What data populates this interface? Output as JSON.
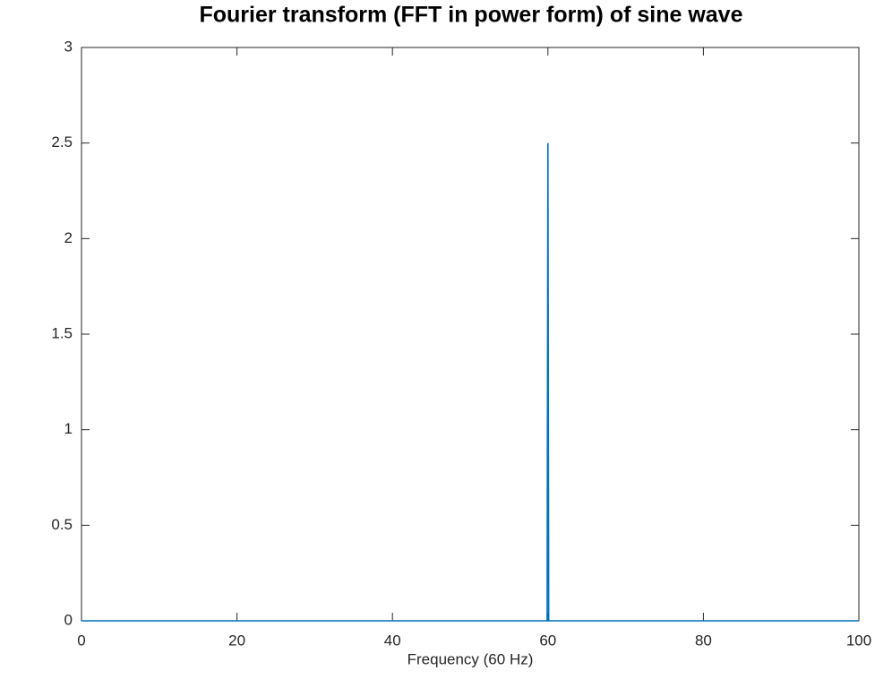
{
  "chart_data": {
    "type": "line",
    "title": "Fourier transform (FFT in power form) of sine wave",
    "x_label": "Frequency (60 Hz)",
    "x": [
      0,
      59.9,
      60,
      60.1,
      100
    ],
    "series": [
      {
        "color": "#0072bd",
        "values": [
          0,
          0,
          2.5,
          0,
          0
        ]
      }
    ],
    "xlim": [
      0,
      100
    ],
    "xticks": [
      0,
      20,
      40,
      60,
      80,
      100
    ],
    "ylim": [
      0,
      3
    ],
    "yticks": [
      0,
      0.5,
      1,
      1.5,
      2,
      2.5,
      3
    ],
    "grid": false
  }
}
